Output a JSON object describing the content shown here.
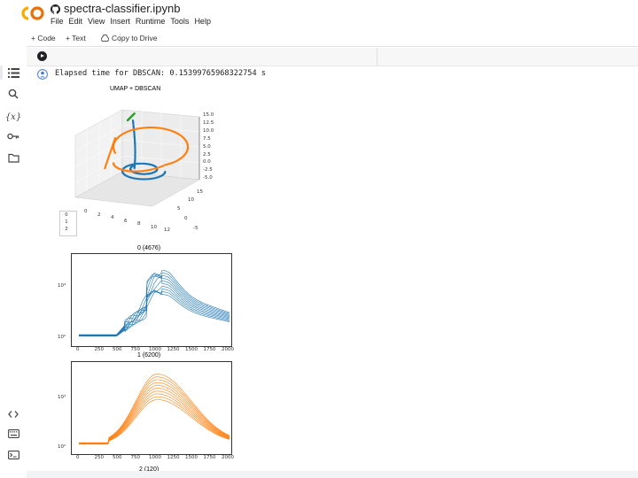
{
  "app": {
    "notebook_title": "spectra-classifier.ipynb"
  },
  "menu": [
    "File",
    "Edit",
    "View",
    "Insert",
    "Runtime",
    "Tools",
    "Help"
  ],
  "toolbar": {
    "code_label": "+ Code",
    "text_label": "+ Text",
    "drive_label": "Copy to Drive"
  },
  "sidebar_icons": [
    "table-of-contents-icon",
    "search-icon",
    "variables-icon",
    "key-icon",
    "folder-icon"
  ],
  "sidebar_bottom_icons": [
    "code-snippets-icon",
    "command-palette-icon",
    "terminal-icon"
  ],
  "variables_glyph": "{x}",
  "cell": {
    "output_text": "Elapsed time for DBSCAN: 0.15399765968322754 s"
  },
  "colors": {
    "cluster0": "#1f77b4",
    "cluster1": "#ff7f0e",
    "cluster2": "#2ca02c",
    "accent": "#f9ab00"
  },
  "chart_data": [
    {
      "type": "scatter3d",
      "title": "UMAP + DBSCAN",
      "x_ticks": [
        "0",
        "2",
        "4",
        "6",
        "8",
        "10",
        "12"
      ],
      "y_ticks": [
        "-5",
        "0",
        "5",
        "10",
        "15"
      ],
      "z_ticks": [
        "15.0",
        "12.5",
        "10.0",
        "7.5",
        "5.0",
        "2.5",
        "0.0",
        "-2.5",
        "-5.0"
      ],
      "legend": [
        "0",
        "1",
        "2"
      ],
      "grid": true
    },
    {
      "type": "line",
      "title": "0 (4676)",
      "x_ticks": [
        "0",
        "250",
        "500",
        "750",
        "1000",
        "1250",
        "1500",
        "1750",
        "2000"
      ],
      "y_ticks": [
        "10²",
        "10⁴"
      ],
      "yscale": "log",
      "color": "#1f77b4"
    },
    {
      "type": "line",
      "title": "1 (6200)",
      "x_ticks": [
        "0",
        "250",
        "500",
        "750",
        "1000",
        "1250",
        "1500",
        "1750",
        "2000"
      ],
      "y_ticks": [
        "10²",
        "10⁴"
      ],
      "yscale": "log",
      "color": "#ff7f0e"
    }
  ],
  "next_title_partial": "2 (120)"
}
